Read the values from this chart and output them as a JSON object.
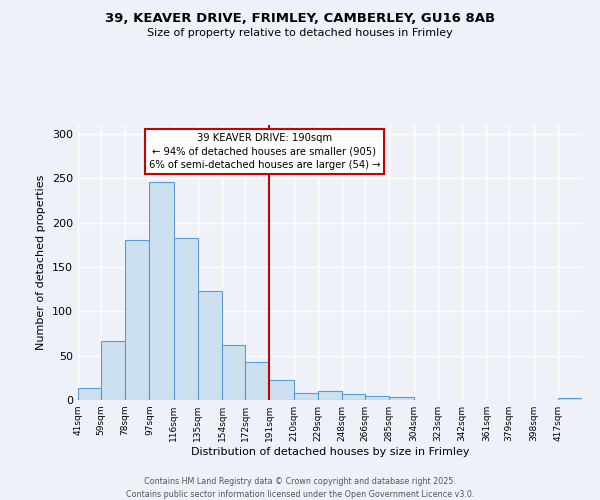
{
  "title_line1": "39, KEAVER DRIVE, FRIMLEY, CAMBERLEY, GU16 8AB",
  "title_line2": "Size of property relative to detached houses in Frimley",
  "xlabel": "Distribution of detached houses by size in Frimley",
  "ylabel": "Number of detached properties",
  "bin_labels": [
    "41sqm",
    "59sqm",
    "78sqm",
    "97sqm",
    "116sqm",
    "135sqm",
    "154sqm",
    "172sqm",
    "191sqm",
    "210sqm",
    "229sqm",
    "248sqm",
    "266sqm",
    "285sqm",
    "304sqm",
    "323sqm",
    "342sqm",
    "361sqm",
    "379sqm",
    "398sqm",
    "417sqm"
  ],
  "bin_edges": [
    41,
    59,
    78,
    97,
    116,
    135,
    154,
    172,
    191,
    210,
    229,
    248,
    266,
    285,
    304,
    323,
    342,
    361,
    379,
    398,
    417
  ],
  "bar_heights": [
    13,
    66,
    180,
    246,
    183,
    123,
    62,
    43,
    22,
    8,
    10,
    7,
    5,
    3,
    0,
    0,
    0,
    0,
    0,
    0,
    2
  ],
  "bar_color": "#cce0f0",
  "bar_edge_color": "#5b9bd5",
  "vline_x": 191,
  "vline_color": "#cc0000",
  "annotation_title": "39 KEAVER DRIVE: 190sqm",
  "annotation_line1": "← 94% of detached houses are smaller (905)",
  "annotation_line2": "6% of semi-detached houses are larger (54) →",
  "annotation_box_color": "#cc0000",
  "ylim": [
    0,
    310
  ],
  "yticks": [
    0,
    50,
    100,
    150,
    200,
    250,
    300
  ],
  "background_color": "#eef2f8",
  "grid_color": "#ffffff",
  "footer_line1": "Contains HM Land Registry data © Crown copyright and database right 2025.",
  "footer_line2": "Contains public sector information licensed under the Open Government Licence v3.0."
}
